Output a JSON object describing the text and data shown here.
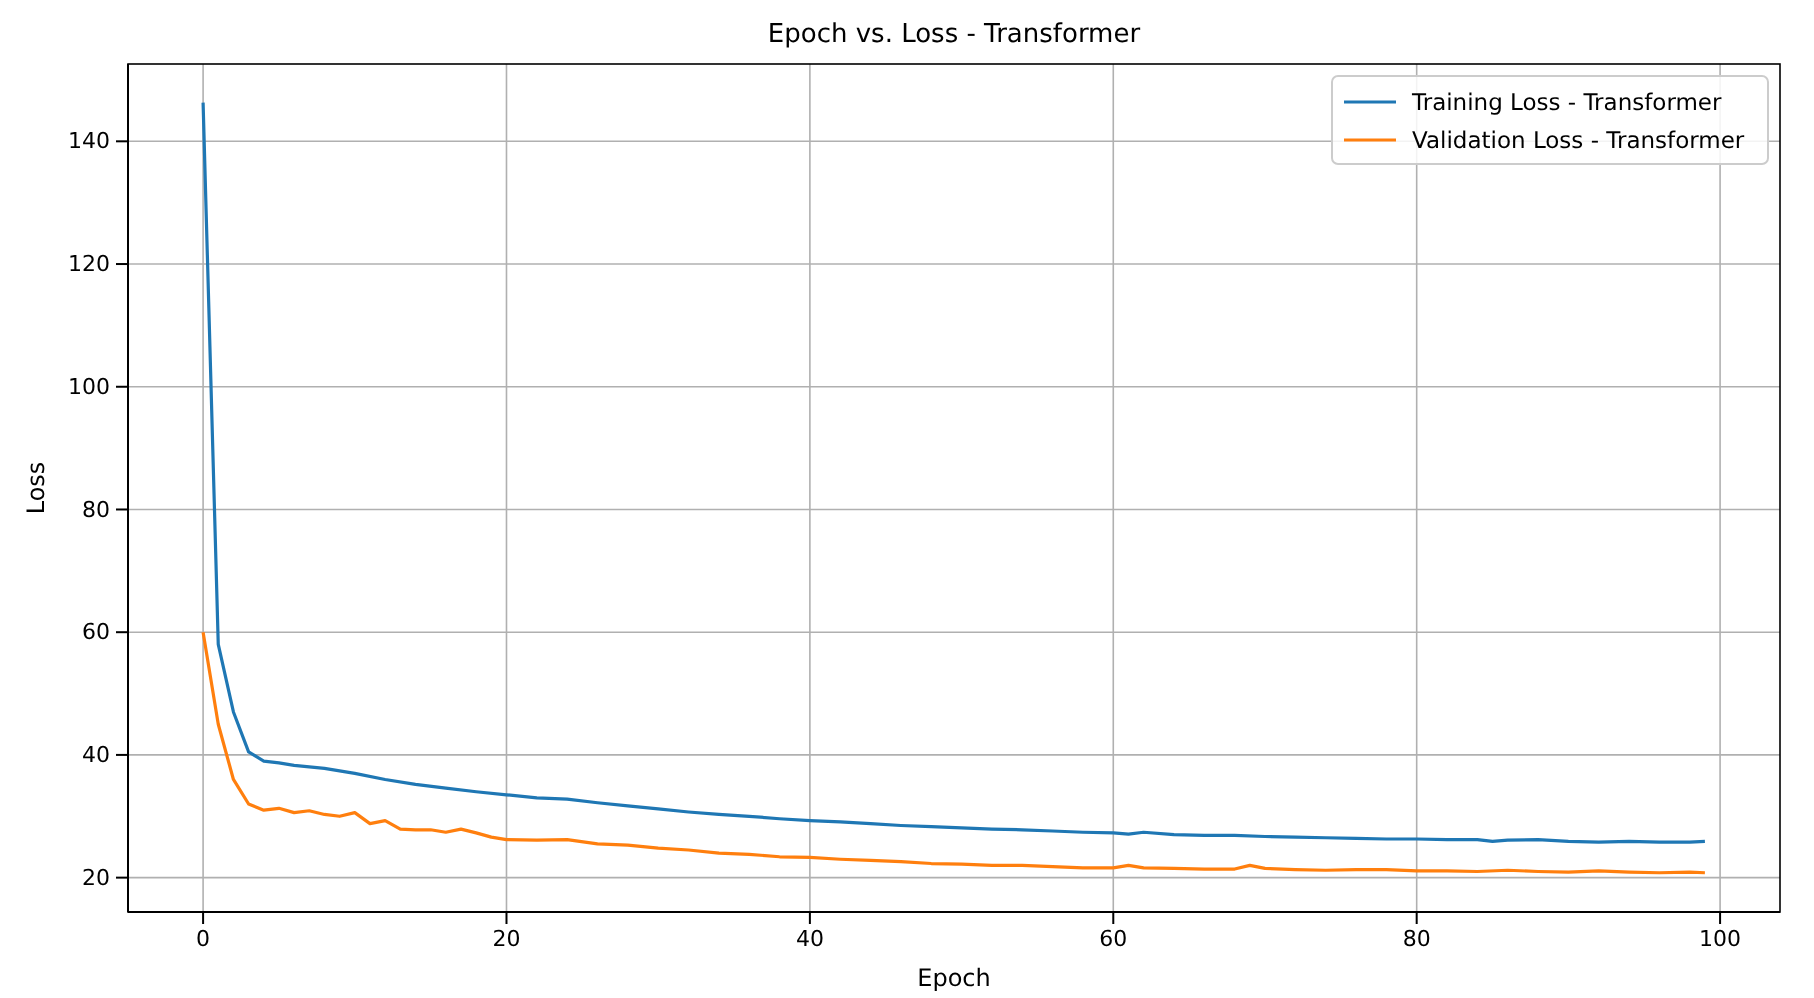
{
  "chart_data": {
    "type": "line",
    "title": "Epoch vs. Loss - Transformer",
    "xlabel": "Epoch",
    "ylabel": "Loss",
    "xlim": [
      -4.95,
      103.95
    ],
    "xticks": [
      0,
      20,
      40,
      60,
      80,
      100
    ],
    "ylim": [
      14.4,
      152.6
    ],
    "yticks": [
      20,
      40,
      60,
      80,
      100,
      120,
      140
    ],
    "grid": true,
    "legend": "top right",
    "line_style": "solid",
    "marker": "none",
    "series": [
      {
        "name": "Training Loss - Transformer",
        "color": "#1f77b4",
        "x": [
          0,
          1,
          2,
          3,
          4,
          5,
          6,
          8,
          10,
          12,
          14,
          16,
          18,
          20,
          22,
          24,
          26,
          28,
          30,
          32,
          34,
          36,
          38,
          40,
          42,
          44,
          46,
          48,
          50,
          52,
          54,
          56,
          58,
          60,
          61,
          62,
          64,
          66,
          68,
          70,
          72,
          74,
          76,
          78,
          80,
          82,
          84,
          85,
          86,
          88,
          90,
          92,
          94,
          96,
          98,
          99
        ],
        "values": [
          146.3,
          58,
          47,
          40.5,
          39,
          38.7,
          38.3,
          37.8,
          37,
          36,
          35.2,
          34.6,
          34,
          33.5,
          33,
          32.8,
          32.2,
          31.7,
          31.2,
          30.7,
          30.3,
          30,
          29.6,
          29.3,
          29.1,
          28.8,
          28.5,
          28.3,
          28.1,
          27.9,
          27.8,
          27.6,
          27.4,
          27.3,
          27.1,
          27.4,
          27,
          26.9,
          26.9,
          26.7,
          26.6,
          26.5,
          26.4,
          26.3,
          26.3,
          26.2,
          26.2,
          25.9,
          26.1,
          26.2,
          25.9,
          25.8,
          25.9,
          25.8,
          25.8,
          25.9
        ]
      },
      {
        "name": "Validation Loss - Transformer",
        "color": "#ff7f0e",
        "x": [
          0,
          1,
          2,
          3,
          4,
          5,
          6,
          7,
          8,
          9,
          10,
          11,
          12,
          13,
          14,
          15,
          16,
          17,
          18,
          19,
          20,
          22,
          24,
          26,
          28,
          30,
          32,
          34,
          36,
          38,
          40,
          42,
          44,
          46,
          48,
          50,
          52,
          54,
          56,
          58,
          60,
          61,
          62,
          64,
          66,
          68,
          69,
          70,
          72,
          74,
          76,
          78,
          80,
          82,
          84,
          86,
          88,
          90,
          92,
          94,
          96,
          98,
          99
        ],
        "values": [
          60,
          45,
          36,
          32,
          31,
          31.3,
          30.6,
          30.9,
          30.3,
          30,
          30.6,
          28.8,
          29.3,
          27.9,
          27.8,
          27.8,
          27.4,
          27.9,
          27.3,
          26.6,
          26.2,
          26.1,
          26.2,
          25.5,
          25.3,
          24.8,
          24.5,
          24,
          23.8,
          23.4,
          23.3,
          23,
          22.8,
          22.6,
          22.3,
          22.2,
          22,
          22,
          21.8,
          21.6,
          21.6,
          22,
          21.6,
          21.5,
          21.4,
          21.4,
          22,
          21.5,
          21.3,
          21.2,
          21.3,
          21.3,
          21.1,
          21.1,
          21,
          21.2,
          21,
          20.9,
          21.1,
          20.9,
          20.8,
          20.9,
          20.8
        ]
      }
    ]
  }
}
